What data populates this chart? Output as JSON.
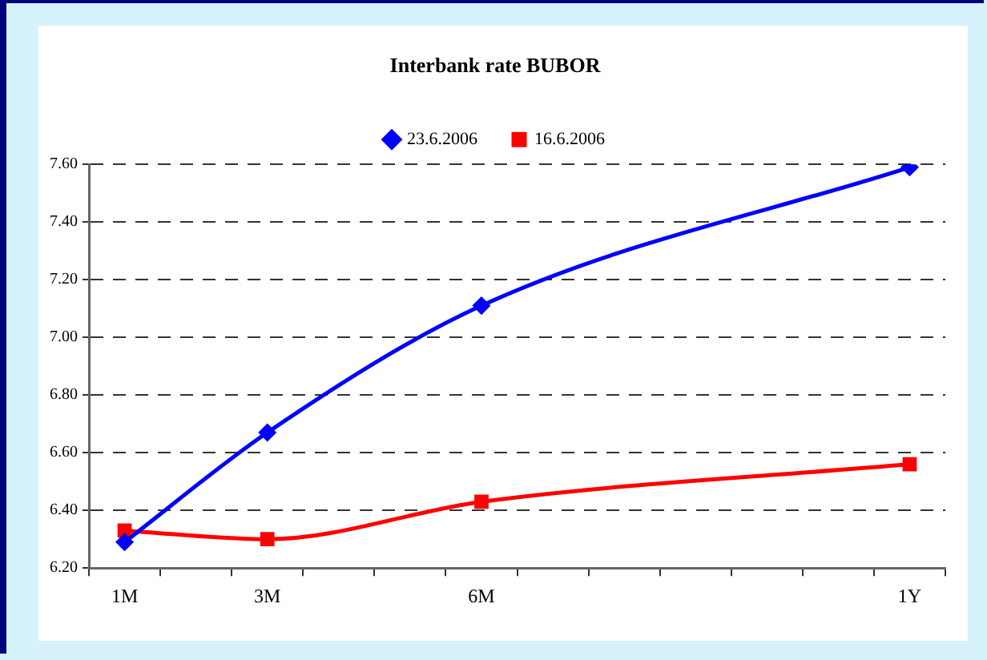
{
  "chart_data": {
    "type": "line",
    "title": "Interbank rate BUBOR",
    "categories": [
      "1M",
      null,
      "3M",
      null,
      null,
      "6M",
      null,
      null,
      null,
      null,
      null,
      "1Y"
    ],
    "series": [
      {
        "name": "23.6.2006",
        "color": "#0000ff",
        "marker": "diamond",
        "values": [
          6.29,
          null,
          6.67,
          null,
          null,
          7.11,
          null,
          null,
          null,
          null,
          null,
          7.59
        ]
      },
      {
        "name": "16.6.2006",
        "color": "#ff0000",
        "marker": "square",
        "values": [
          6.33,
          null,
          6.3,
          null,
          null,
          6.43,
          null,
          null,
          null,
          null,
          null,
          6.56
        ]
      }
    ],
    "ylim": [
      6.2,
      7.6
    ],
    "yticks": [
      {
        "value": 6.2,
        "label": "6.20"
      },
      {
        "value": 6.4,
        "label": "6.40"
      },
      {
        "value": 6.6,
        "label": "6.60"
      },
      {
        "value": 6.8,
        "label": "6.80"
      },
      {
        "value": 7.0,
        "label": "7.00"
      },
      {
        "value": 7.2,
        "label": "7.20"
      },
      {
        "value": 7.4,
        "label": "7.40"
      },
      {
        "value": 7.6,
        "label": "7.60"
      }
    ],
    "grid": "y",
    "legend": "top",
    "line_style": "solid"
  }
}
